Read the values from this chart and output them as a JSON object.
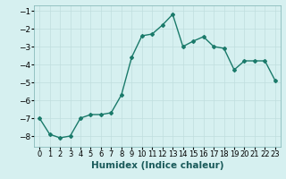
{
  "x": [
    0,
    1,
    2,
    3,
    4,
    5,
    6,
    7,
    8,
    9,
    10,
    11,
    12,
    13,
    14,
    15,
    16,
    17,
    18,
    19,
    20,
    21,
    22,
    23
  ],
  "y": [
    -7.0,
    -7.9,
    -8.1,
    -8.0,
    -7.0,
    -6.8,
    -6.8,
    -6.7,
    -5.7,
    -3.6,
    -2.4,
    -2.3,
    -1.8,
    -1.2,
    -3.0,
    -2.7,
    -2.45,
    -3.0,
    -3.1,
    -4.3,
    -3.8,
    -3.8,
    -3.8,
    -4.9
  ],
  "line_color": "#1a7a6a",
  "marker": "D",
  "marker_size": 2,
  "bg_color": "#d6f0f0",
  "grid_color": "#c0dede",
  "xlabel": "Humidex (Indice chaleur)",
  "xlabel_fontsize": 7.5,
  "xlabel_weight": "bold",
  "ylim": [
    -8.6,
    -0.7
  ],
  "xlim": [
    -0.5,
    23.5
  ],
  "yticks": [
    -8,
    -7,
    -6,
    -5,
    -4,
    -3,
    -2,
    -1
  ],
  "xtick_fontsize": 6,
  "ytick_fontsize": 6.5,
  "linewidth": 1.0
}
